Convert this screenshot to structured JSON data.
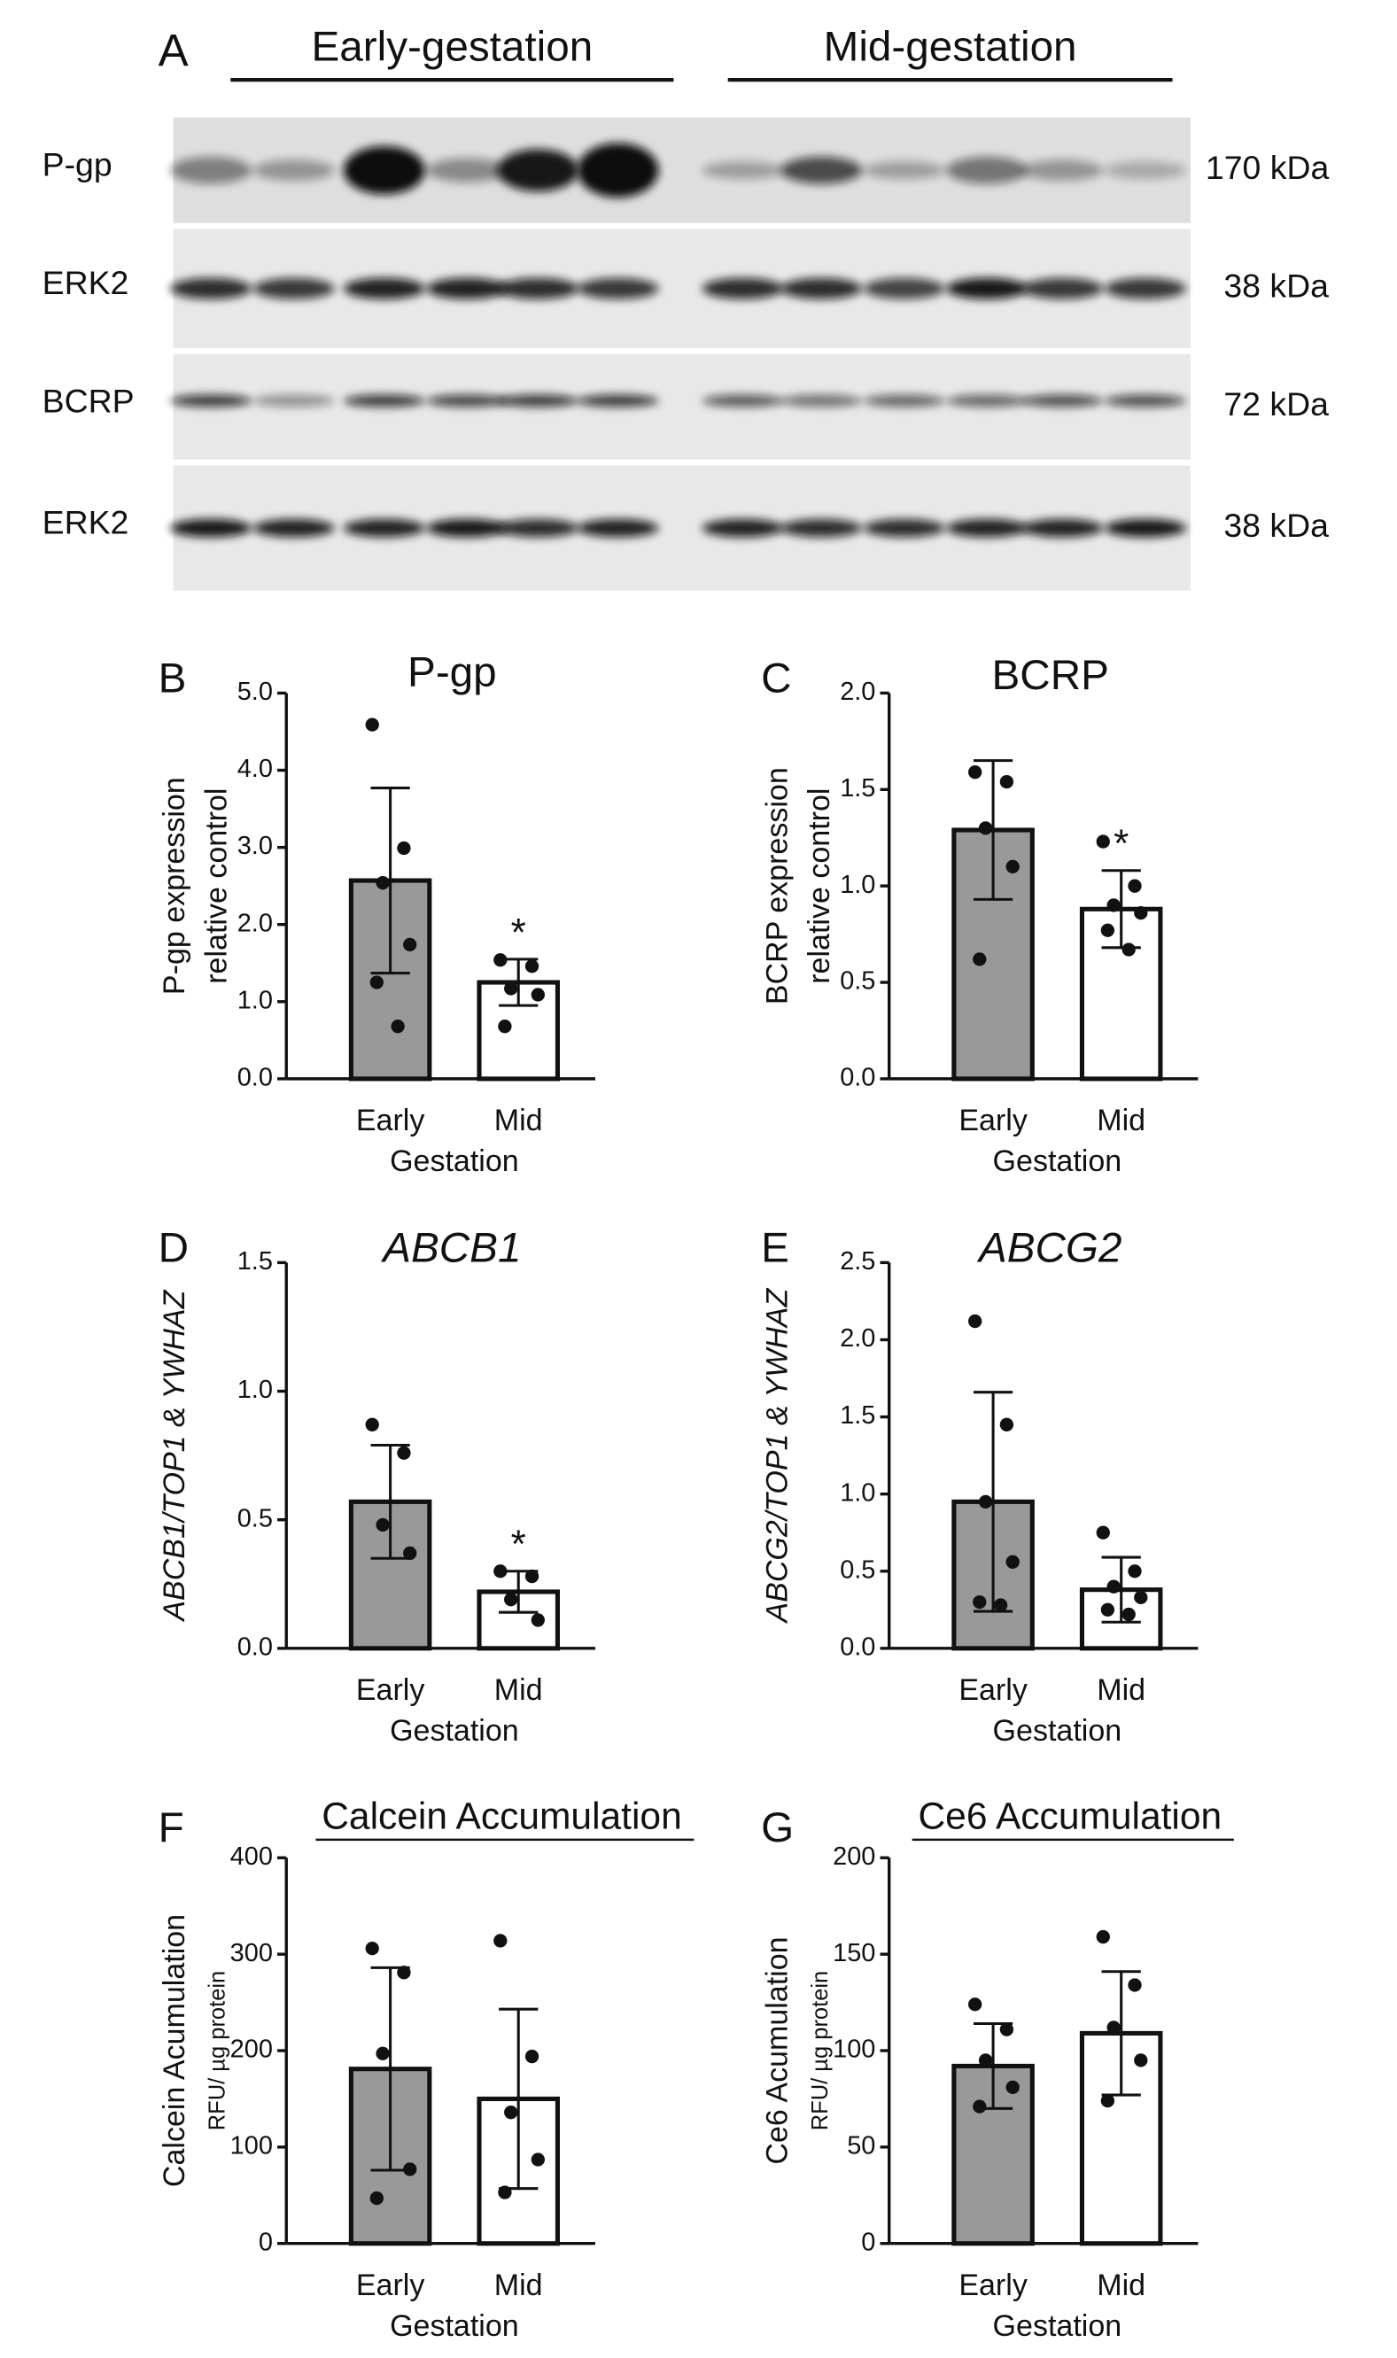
{
  "blot": {
    "panel_label": "A",
    "groups": [
      "Early-gestation",
      "Mid-gestation"
    ],
    "rows": [
      {
        "label": "P-gp",
        "size": "170 kDa"
      },
      {
        "label": "ERK2",
        "size": "38 kDa"
      },
      {
        "label": "BCRP",
        "size": "72 kDa"
      },
      {
        "label": "ERK2",
        "size": "38 kDa"
      }
    ]
  },
  "chart_data": [
    {
      "type": "bar",
      "panel_label": "B",
      "title": "P-gp",
      "y_label": [
        "P-gp expression",
        "relative control"
      ],
      "x_label": "Gestation",
      "categories": [
        "Early",
        "Mid"
      ],
      "colors": [
        "#999999",
        "#ffffff"
      ],
      "values": [
        2.57,
        1.25
      ],
      "errors": [
        1.2,
        0.3
      ],
      "points": [
        [
          4.59,
          2.99,
          2.54,
          1.74,
          1.25,
          0.68
        ],
        [
          1.54,
          1.46,
          1.17,
          1.09,
          0.68
        ]
      ],
      "annotation": "*",
      "ylim": [
        0,
        5
      ],
      "yticks": [
        {
          "value": 0,
          "label": "0.0"
        },
        {
          "value": 1,
          "label": "1.0"
        },
        {
          "value": 2,
          "label": "2.0"
        },
        {
          "value": 3,
          "label": "3.0"
        },
        {
          "value": 4,
          "label": "4.0"
        },
        {
          "value": 5,
          "label": "5.0"
        }
      ]
    },
    {
      "type": "bar",
      "panel_label": "C",
      "title": "BCRP",
      "y_label": [
        "BCRP expression",
        "relative control"
      ],
      "x_label": "Gestation",
      "categories": [
        "Early",
        "Mid"
      ],
      "colors": [
        "#999999",
        "#ffffff"
      ],
      "values": [
        1.29,
        0.88
      ],
      "errors": [
        0.36,
        0.2
      ],
      "points": [
        [
          1.59,
          1.54,
          1.3,
          1.1,
          0.62
        ],
        [
          1.23,
          1.0,
          0.9,
          0.86,
          0.77,
          0.67
        ]
      ],
      "annotation": "*",
      "ylim": [
        0,
        2
      ],
      "yticks": [
        {
          "value": 0,
          "label": "0.0"
        },
        {
          "value": 0.5,
          "label": "0.5"
        },
        {
          "value": 1,
          "label": "1.0"
        },
        {
          "value": 1.5,
          "label": "1.5"
        },
        {
          "value": 2,
          "label": "2.0"
        }
      ]
    },
    {
      "type": "bar",
      "panel_label": "D",
      "title": "ABCB1",
      "y_label": [
        "ABCB1/TOP1 & YWHAZ"
      ],
      "x_label": "Gestation",
      "categories": [
        "Early",
        "Mid"
      ],
      "colors": [
        "#999999",
        "#ffffff"
      ],
      "values": [
        0.57,
        0.22
      ],
      "errors": [
        0.22,
        0.08
      ],
      "points": [
        [
          0.87,
          0.76,
          0.48,
          0.37
        ],
        [
          0.3,
          0.28,
          0.19,
          0.11
        ]
      ],
      "annotation": "*",
      "ylim": [
        0,
        1.5
      ],
      "yticks": [
        {
          "value": 0,
          "label": "0.0"
        },
        {
          "value": 0.5,
          "label": "0.5"
        },
        {
          "value": 1,
          "label": "1.0"
        },
        {
          "value": 1.5,
          "label": "1.5"
        }
      ]
    },
    {
      "type": "bar",
      "panel_label": "E",
      "title": "ABCG2",
      "y_label": [
        "ABCG2/TOP1 & YWHAZ"
      ],
      "x_label": "Gestation",
      "categories": [
        "Early",
        "Mid"
      ],
      "colors": [
        "#999999",
        "#ffffff"
      ],
      "values": [
        0.95,
        0.38
      ],
      "errors": [
        0.71,
        0.21
      ],
      "points": [
        [
          2.12,
          1.45,
          0.95,
          0.56,
          0.3,
          0.28
        ],
        [
          0.75,
          0.5,
          0.4,
          0.33,
          0.25,
          0.22
        ]
      ],
      "ylim": [
        0,
        2.5
      ],
      "yticks": [
        {
          "value": 0,
          "label": "0.0"
        },
        {
          "value": 0.5,
          "label": "0.5"
        },
        {
          "value": 1,
          "label": "1.0"
        },
        {
          "value": 1.5,
          "label": "1.5"
        },
        {
          "value": 2,
          "label": "2.0"
        },
        {
          "value": 2.5,
          "label": "2.5"
        }
      ]
    },
    {
      "type": "bar",
      "panel_label": "F",
      "title": "Calcein Accumulation",
      "y_label": [
        "Calcein Acumulation",
        "RFU/ µg protein"
      ],
      "x_label": "Gestation",
      "categories": [
        "Early",
        "Mid"
      ],
      "colors": [
        "#999999",
        "#ffffff"
      ],
      "values": [
        181,
        150
      ],
      "errors": [
        105,
        93
      ],
      "points": [
        [
          306,
          281,
          197,
          77,
          47
        ],
        [
          314,
          194,
          136,
          87,
          53
        ]
      ],
      "ylim": [
        0,
        400
      ],
      "yticks": [
        0,
        100,
        200,
        300,
        400
      ]
    },
    {
      "type": "bar",
      "panel_label": "G",
      "title": "Ce6 Accumulation",
      "y_label": [
        "Ce6 Acumulation",
        "RFU/ µg protein"
      ],
      "x_label": "Gestation",
      "categories": [
        "Early",
        "Mid"
      ],
      "colors": [
        "#999999",
        "#ffffff"
      ],
      "values": [
        92,
        109
      ],
      "errors": [
        22,
        32
      ],
      "points": [
        [
          124,
          111,
          95,
          81,
          71
        ],
        [
          159,
          134,
          112,
          95,
          74
        ]
      ],
      "ylim": [
        0,
        200
      ],
      "yticks": [
        0,
        50,
        100,
        150,
        200
      ]
    }
  ]
}
